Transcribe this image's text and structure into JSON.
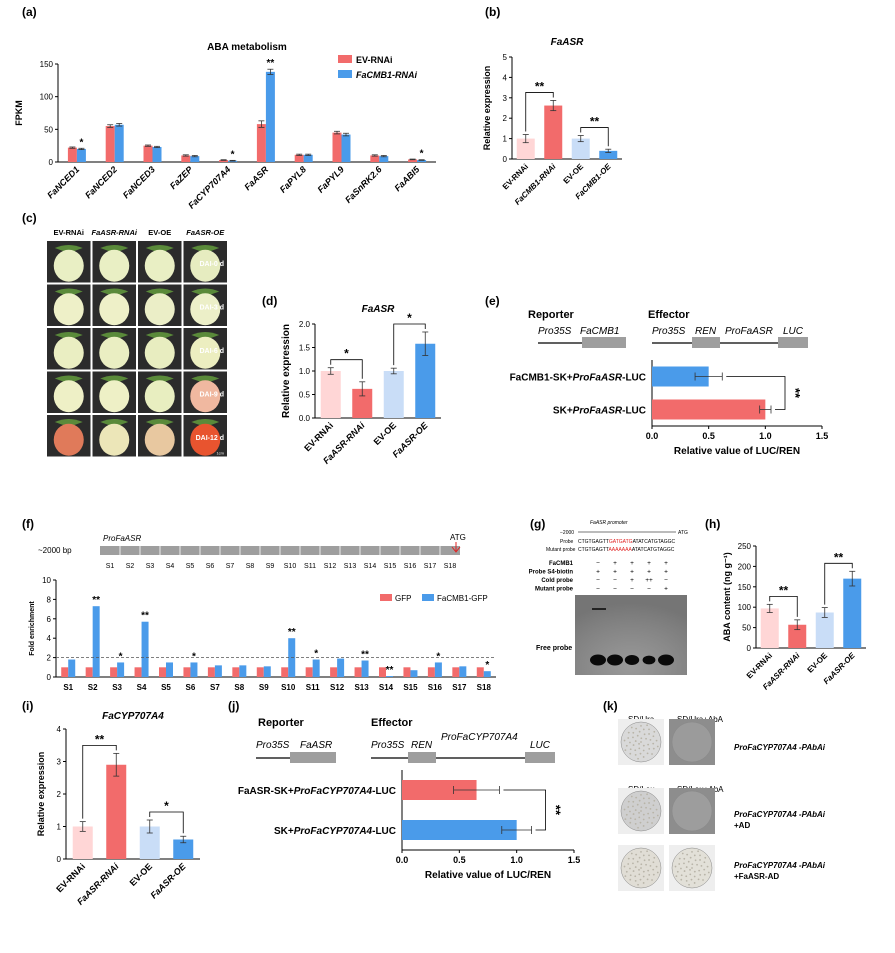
{
  "colors": {
    "ev_rnai": "#FFD6D6",
    "rnai": "#F26B6B",
    "ev_oe": "#C9DDF7",
    "oe": "#4A9BEA",
    "axis": "#000000",
    "gray_box": "#9E9E9E",
    "red_text": "#E02020"
  },
  "panels": {
    "a": "(a)",
    "b": "(b)",
    "c": "(c)",
    "d": "(d)",
    "e": "(e)",
    "f": "(f)",
    "g": "(g)",
    "h": "(h)",
    "i": "(i)",
    "j": "(j)",
    "k": "(k)"
  },
  "chart_data": [
    {
      "id": "a",
      "type": "bar",
      "title": "ABA metabolism",
      "ylabel": "FPKM",
      "ylim": [
        0,
        150
      ],
      "yticks": [
        0,
        50,
        100,
        150
      ],
      "categories": [
        "FaNCED1",
        "FaNCED2",
        "FaNCED3",
        "FaZEP",
        "FaCYP707A4",
        "FaASR",
        "FaPYL8",
        "FaPYL9",
        "FaSnRK2.6",
        "FaABI5"
      ],
      "series": [
        {
          "name": "EV-RNAi",
          "values": [
            22,
            55,
            25,
            10,
            3,
            58,
            11,
            45,
            10,
            4
          ],
          "errors": [
            1,
            2,
            1,
            1,
            0.5,
            5,
            1,
            2,
            1,
            0.5
          ]
        },
        {
          "name": "FaCMB1-RNAi",
          "values": [
            20,
            57,
            23,
            9,
            2,
            138,
            11,
            42,
            9,
            3
          ],
          "errors": [
            1,
            2,
            1,
            1,
            0.5,
            4,
            1,
            2,
            1,
            0.5
          ]
        }
      ],
      "significance": [
        "*",
        "",
        "",
        "",
        "*",
        "**",
        "",
        "",
        "",
        "*"
      ]
    },
    {
      "id": "b",
      "type": "bar",
      "title": "FaASR",
      "ylabel": "Relative expression",
      "ylim": [
        0,
        5
      ],
      "yticks": [
        0,
        1,
        2,
        3,
        4,
        5
      ],
      "categories": [
        "EV-RNAi",
        "FaCMB1-RNAi",
        "EV-OE",
        "FaCMB1-OE"
      ],
      "values": [
        1.0,
        2.62,
        1.0,
        0.4
      ],
      "errors": [
        0.2,
        0.25,
        0.15,
        0.08
      ],
      "brackets": [
        {
          "from": 0,
          "to": 1,
          "label": "**"
        },
        {
          "from": 2,
          "to": 3,
          "label": "**"
        }
      ]
    },
    {
      "id": "d",
      "type": "bar",
      "title": "FaASR",
      "ylabel": "Relative expression",
      "ylim": [
        0,
        2.0
      ],
      "yticks": [
        "0.0",
        "0.5",
        "1.0",
        "1.5",
        "2.0"
      ],
      "categories": [
        "EV-RNAi",
        "FaASR-RNAi",
        "EV-OE",
        "FaASR-OE"
      ],
      "values": [
        1.0,
        0.62,
        1.0,
        1.58
      ],
      "errors": [
        0.07,
        0.15,
        0.06,
        0.25
      ],
      "brackets": [
        {
          "from": 0,
          "to": 1,
          "label": "*"
        },
        {
          "from": 2,
          "to": 3,
          "label": "*"
        }
      ]
    },
    {
      "id": "e",
      "type": "bar",
      "orientation": "horizontal",
      "xlabel": "Relative value of LUC/REN",
      "xlim": [
        0,
        1.5
      ],
      "xticks": [
        "0.0",
        "0.5",
        "1.0",
        "1.5"
      ],
      "categories": [
        "FaCMB1-SK+ProFaASR-LUC",
        "SK+ProFaASR-LUC"
      ],
      "values": [
        0.5,
        1.0
      ],
      "errors": [
        0.12,
        0.05
      ],
      "significance": "**"
    },
    {
      "id": "f",
      "type": "bar",
      "ylabel": "Fold enrichment",
      "ylim": [
        0,
        10
      ],
      "yticks": [
        0,
        2,
        4,
        6,
        8,
        10
      ],
      "categories": [
        "S1",
        "S2",
        "S3",
        "S4",
        "S5",
        "S6",
        "S7",
        "S8",
        "S9",
        "S10",
        "S11",
        "S12",
        "S13",
        "S14",
        "S15",
        "S16",
        "S17",
        "S18"
      ],
      "series": [
        {
          "name": "GFP",
          "values": [
            1,
            1,
            1,
            1,
            1,
            1,
            1,
            1,
            1,
            1,
            1,
            1,
            1,
            1,
            1,
            1,
            1,
            1
          ]
        },
        {
          "name": "FaCMB1-GFP",
          "values": [
            1.8,
            7.3,
            1.5,
            5.7,
            1.5,
            1.5,
            1.2,
            1.2,
            1.1,
            4.0,
            1.8,
            1.9,
            1.7,
            0.1,
            0.7,
            1.5,
            1.1,
            0.6
          ]
        }
      ],
      "significance": [
        "",
        "**",
        "*",
        "**",
        "",
        "*",
        "",
        "",
        "",
        "**",
        "*",
        "",
        "**",
        "**",
        "",
        "*",
        "",
        "*"
      ],
      "promoter_label": "ProFaASR",
      "length_label": "~2000 bp",
      "atg": "ATG"
    },
    {
      "id": "h",
      "type": "bar",
      "ylabel": "ABA content (ng g⁻¹)",
      "ylim": [
        0,
        250
      ],
      "yticks": [
        0,
        50,
        100,
        150,
        200,
        250
      ],
      "categories": [
        "EV-RNAi",
        "FaASR-RNAi",
        "EV-OE",
        "FaASR-OE"
      ],
      "values": [
        97,
        57,
        87,
        170
      ],
      "errors": [
        10,
        12,
        12,
        18
      ],
      "brackets": [
        {
          "from": 0,
          "to": 1,
          "label": "**"
        },
        {
          "from": 2,
          "to": 3,
          "label": "**"
        }
      ]
    },
    {
      "id": "i",
      "type": "bar",
      "title": "FaCYP707A4",
      "ylabel": "Relative expression",
      "ylim": [
        0,
        4
      ],
      "yticks": [
        0,
        1,
        2,
        3,
        4
      ],
      "categories": [
        "EV-RNAi",
        "FaASR-RNAi",
        "EV-OE",
        "FaASR-OE"
      ],
      "values": [
        1.0,
        2.9,
        1.0,
        0.6
      ],
      "errors": [
        0.15,
        0.35,
        0.2,
        0.1
      ],
      "brackets": [
        {
          "from": 0,
          "to": 1,
          "label": "**"
        },
        {
          "from": 2,
          "to": 3,
          "label": "*"
        }
      ]
    },
    {
      "id": "j",
      "type": "bar",
      "orientation": "horizontal",
      "xlabel": "Relative value of LUC/REN",
      "xlim": [
        0,
        1.5
      ],
      "xticks": [
        "0.0",
        "0.5",
        "1.0",
        "1.5"
      ],
      "categories": [
        "FaASR-SK+ProFaCYP707A4-LUC",
        "SK+ProFaCYP707A4-LUC"
      ],
      "values": [
        0.65,
        1.0
      ],
      "errors": [
        0.2,
        0.13
      ],
      "significance": "**"
    }
  ],
  "panel_c": {
    "headers": [
      "EV-RNAi",
      "FaASR-RNAi",
      "EV-OE",
      "FaASR-OE"
    ],
    "rows": [
      "DAI-0 d",
      "DAI-3 d",
      "DAI-6 d",
      "DAI-9 d",
      "DAI-12 d"
    ],
    "scale": "1cm"
  },
  "panel_e": {
    "reporter": "Reporter",
    "effector": "Effector",
    "rep_promoter": "Pro35S",
    "rep_gene": "FaCMB1",
    "eff_promoter": "Pro35S",
    "eff_ren": "REN",
    "eff_pro": "ProFaASR",
    "eff_luc": "LUC"
  },
  "panel_j": {
    "reporter": "Reporter",
    "effector": "Effector",
    "rep_promoter": "Pro35S",
    "rep_gene": "FaASR",
    "eff_promoter": "Pro35S",
    "eff_ren": "REN",
    "eff_pro": "ProFaCYP707A4",
    "eff_luc": "LUC"
  },
  "panel_g": {
    "promoter": "FaASR promoter",
    "start": "−2000",
    "atg": "ATG",
    "probe_label": "Probe",
    "probe_seq_a": "CTGTGAGTT",
    "probe_seq_red": "GATGATG",
    "probe_seq_b": "ATATCATGTAGGC",
    "mutant_label": "Mutant probe",
    "mutant_seq_a": "CTGTGAGTT",
    "mutant_seq_red": "AAAAAAA",
    "mutant_seq_b": "ATATCATGTAGGC",
    "row_labels": [
      "FaCMB1",
      "Probe S4-biotin",
      "Cold probe",
      "Mutant probe"
    ],
    "cells": [
      [
        "−",
        "+",
        "+",
        "+",
        "+"
      ],
      [
        "+",
        "+",
        "+",
        "+",
        "+"
      ],
      [
        "−",
        "−",
        "+",
        "++",
        "−"
      ],
      [
        "−",
        "−",
        "−",
        "−",
        "+"
      ]
    ],
    "free_probe": "Free probe"
  },
  "panel_k": {
    "col1": "SD/Ura",
    "col2": "SD/Ura+AbA",
    "col3": "SD/Leu",
    "col4": "SD/Leu+AbA",
    "row1": "ProFaCYP707A4 -PAbAi",
    "row2a": "ProFaCYP707A4 -PAbAi",
    "row2b": "+AD",
    "row3a": "ProFaCYP707A4 -PAbAi",
    "row3b": "+FaASR-AD"
  }
}
